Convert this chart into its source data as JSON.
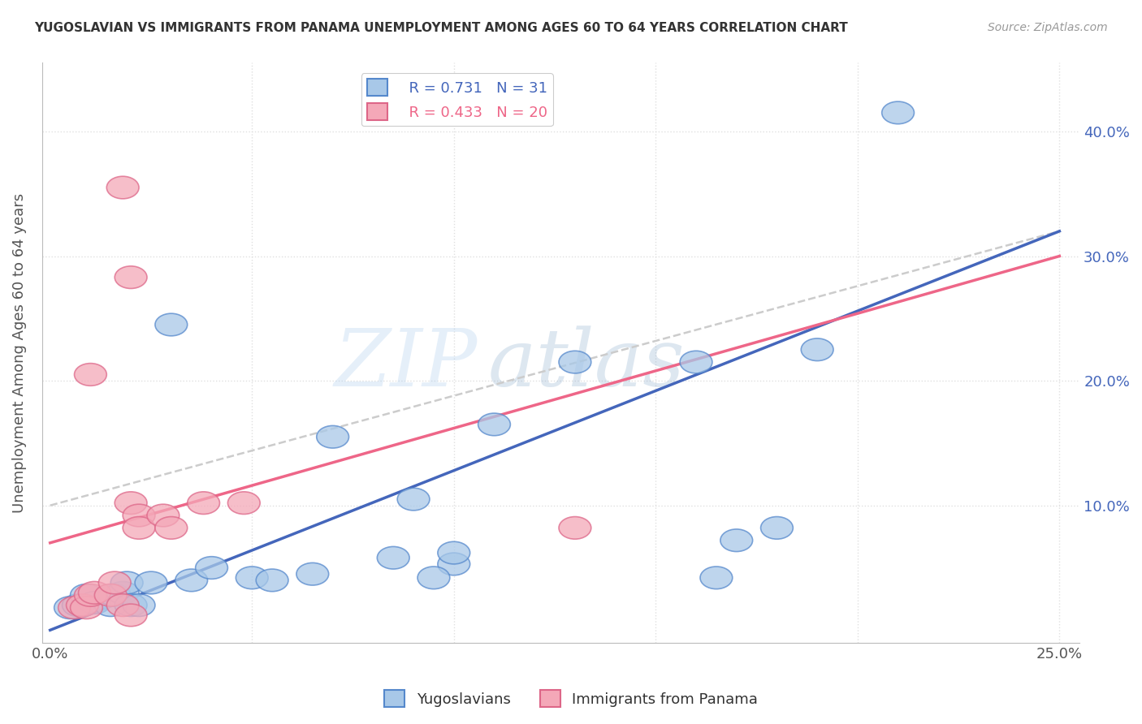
{
  "title": "YUGOSLAVIAN VS IMMIGRANTS FROM PANAMA UNEMPLOYMENT AMONG AGES 60 TO 64 YEARS CORRELATION CHART",
  "source": "Source: ZipAtlas.com",
  "ylabel": "Unemployment Among Ages 60 to 64 years",
  "xlabel": "",
  "xlim": [
    -0.002,
    0.255
  ],
  "ylim": [
    -0.01,
    0.455
  ],
  "xticks": [
    0.0,
    0.05,
    0.1,
    0.15,
    0.2,
    0.25
  ],
  "yticks": [
    0.0,
    0.1,
    0.2,
    0.3,
    0.4
  ],
  "legend_blue_r": "R = 0.731",
  "legend_blue_n": "N = 31",
  "legend_pink_r": "R = 0.433",
  "legend_pink_n": "N = 20",
  "color_blue_fill": "#A8C8E8",
  "color_blue_edge": "#5588CC",
  "color_pink_fill": "#F4A8B8",
  "color_pink_edge": "#DD6688",
  "color_blue_line": "#4466BB",
  "color_pink_line": "#EE6688",
  "color_dashed": "#CCCCCC",
  "blue_scatter_x": [
    0.21,
    0.03,
    0.07,
    0.09,
    0.1,
    0.1,
    0.11,
    0.13,
    0.16,
    0.165,
    0.17,
    0.18,
    0.19,
    0.005,
    0.007,
    0.009,
    0.011,
    0.015,
    0.016,
    0.018,
    0.019,
    0.02,
    0.022,
    0.025,
    0.035,
    0.04,
    0.05,
    0.055,
    0.065,
    0.085,
    0.095
  ],
  "blue_scatter_y": [
    0.415,
    0.245,
    0.155,
    0.105,
    0.053,
    0.062,
    0.165,
    0.215,
    0.215,
    0.042,
    0.072,
    0.082,
    0.225,
    0.018,
    0.02,
    0.028,
    0.022,
    0.02,
    0.028,
    0.03,
    0.038,
    0.02,
    0.02,
    0.038,
    0.04,
    0.05,
    0.042,
    0.04,
    0.045,
    0.058,
    0.042
  ],
  "pink_scatter_x": [
    0.01,
    0.018,
    0.02,
    0.02,
    0.022,
    0.022,
    0.028,
    0.03,
    0.038,
    0.048,
    0.13,
    0.006,
    0.008,
    0.009,
    0.01,
    0.011,
    0.015,
    0.016,
    0.018,
    0.02
  ],
  "pink_scatter_y": [
    0.205,
    0.355,
    0.283,
    0.102,
    0.092,
    0.082,
    0.092,
    0.082,
    0.102,
    0.102,
    0.082,
    0.018,
    0.02,
    0.018,
    0.028,
    0.03,
    0.028,
    0.038,
    0.02,
    0.012
  ],
  "blue_trend_x": [
    0.0,
    0.25
  ],
  "blue_trend_y": [
    0.0,
    0.32
  ],
  "pink_trend_x": [
    0.0,
    0.25
  ],
  "pink_trend_y": [
    0.07,
    0.3
  ],
  "dashed_trend_x": [
    0.0,
    0.25
  ],
  "dashed_trend_y": [
    0.1,
    0.32
  ],
  "watermark_text": "ZIP",
  "watermark_text2": "atlas",
  "background_color": "#FFFFFF",
  "grid_color": "#E0E0E0",
  "title_color": "#333333",
  "source_color": "#999999",
  "ylabel_color": "#555555",
  "tick_label_color_x": "#555555",
  "tick_label_color_y": "#4466BB"
}
